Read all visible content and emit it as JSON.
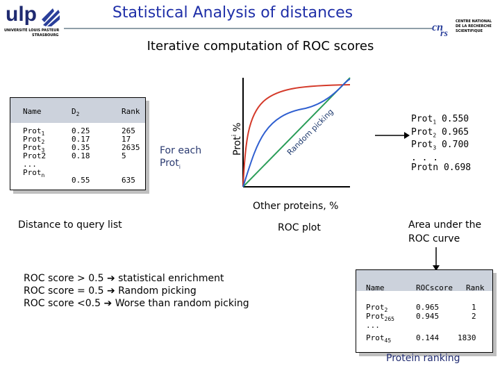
{
  "header": {
    "title": "Statistical Analysis of distances",
    "subtitle": "Iterative computation of ROC scores",
    "logo_left": "ulp",
    "logo_left_caption_1": "UNIVERSITÉ LOUIS PASTEUR",
    "logo_left_caption_2": "STRASBOURG",
    "logo_right_line1": "CENTRE NATIONAL",
    "logo_right_line2": "DE LA RECHERCHE",
    "logo_right_line3": "SCIENTIFIQUE"
  },
  "distance_table": {
    "headers": [
      "Name",
      "D",
      "Rank"
    ],
    "d_sub": "2",
    "rows": [
      {
        "name": "Prot",
        "sub": "1",
        "d": "0.25",
        "rank": "265"
      },
      {
        "name": "Prot",
        "sub": "2",
        "d": "0.17",
        "rank": "17"
      },
      {
        "name": "Prot",
        "sub": "3",
        "d": "0.35",
        "rank": "2635"
      },
      {
        "name": "Prot2",
        "sub": "",
        "d": "0.18",
        "rank": "5"
      },
      {
        "name": "...",
        "sub": "",
        "d": "",
        "rank": ""
      },
      {
        "name": "Prot",
        "sub": "n",
        "d": "0.55",
        "rank": "635"
      }
    ],
    "caption": "Distance to query list"
  },
  "for_each": {
    "line1": "For each",
    "line2": "Prot",
    "sub": "i"
  },
  "roc_plot": {
    "ylabel": "Prot",
    "ylabel_sub": "i",
    "ylabel_unit": "%",
    "xlabel": "Other proteins, %",
    "diagonal_label": "Random picking",
    "caption": "ROC plot",
    "colors": {
      "red": "#d43a2a",
      "blue": "#2f5fd0",
      "green": "#2a9d58",
      "axis": "#000000"
    }
  },
  "roc_scores": {
    "rows": [
      {
        "name": "Prot",
        "sub": "1",
        "value": "0.550"
      },
      {
        "name": "Prot",
        "sub": "2",
        "value": "0.965"
      },
      {
        "name": "Prot",
        "sub": "3",
        "value": "0.700"
      },
      {
        "name": ". . .",
        "sub": "",
        "value": ""
      },
      {
        "name": "Protn",
        "sub": "",
        "value": "0.698"
      }
    ]
  },
  "auc_label": {
    "line1": "Area under the",
    "line2": "ROC curve"
  },
  "rules": [
    {
      "left": "ROC score > 0.5",
      "right": "statistical enrichment"
    },
    {
      "left": "ROC score = 0.5",
      "right": "Random picking"
    },
    {
      "left": "ROC score <0.5",
      "right": "Worse than random picking"
    }
  ],
  "ranking_table": {
    "headers": [
      "Name",
      "ROCscore",
      "Rank"
    ],
    "rows": [
      {
        "name": "Prot",
        "sub": "2",
        "score": "0.965",
        "rank": "1"
      },
      {
        "name": "Prot",
        "sub": "265",
        "score": "0.945",
        "rank": "2"
      },
      {
        "name": "...",
        "sub": "",
        "score": "",
        "rank": ""
      },
      {
        "name": "Prot",
        "sub": "45",
        "score": "0.144",
        "rank": "1830"
      }
    ],
    "caption": "Protein ranking"
  }
}
